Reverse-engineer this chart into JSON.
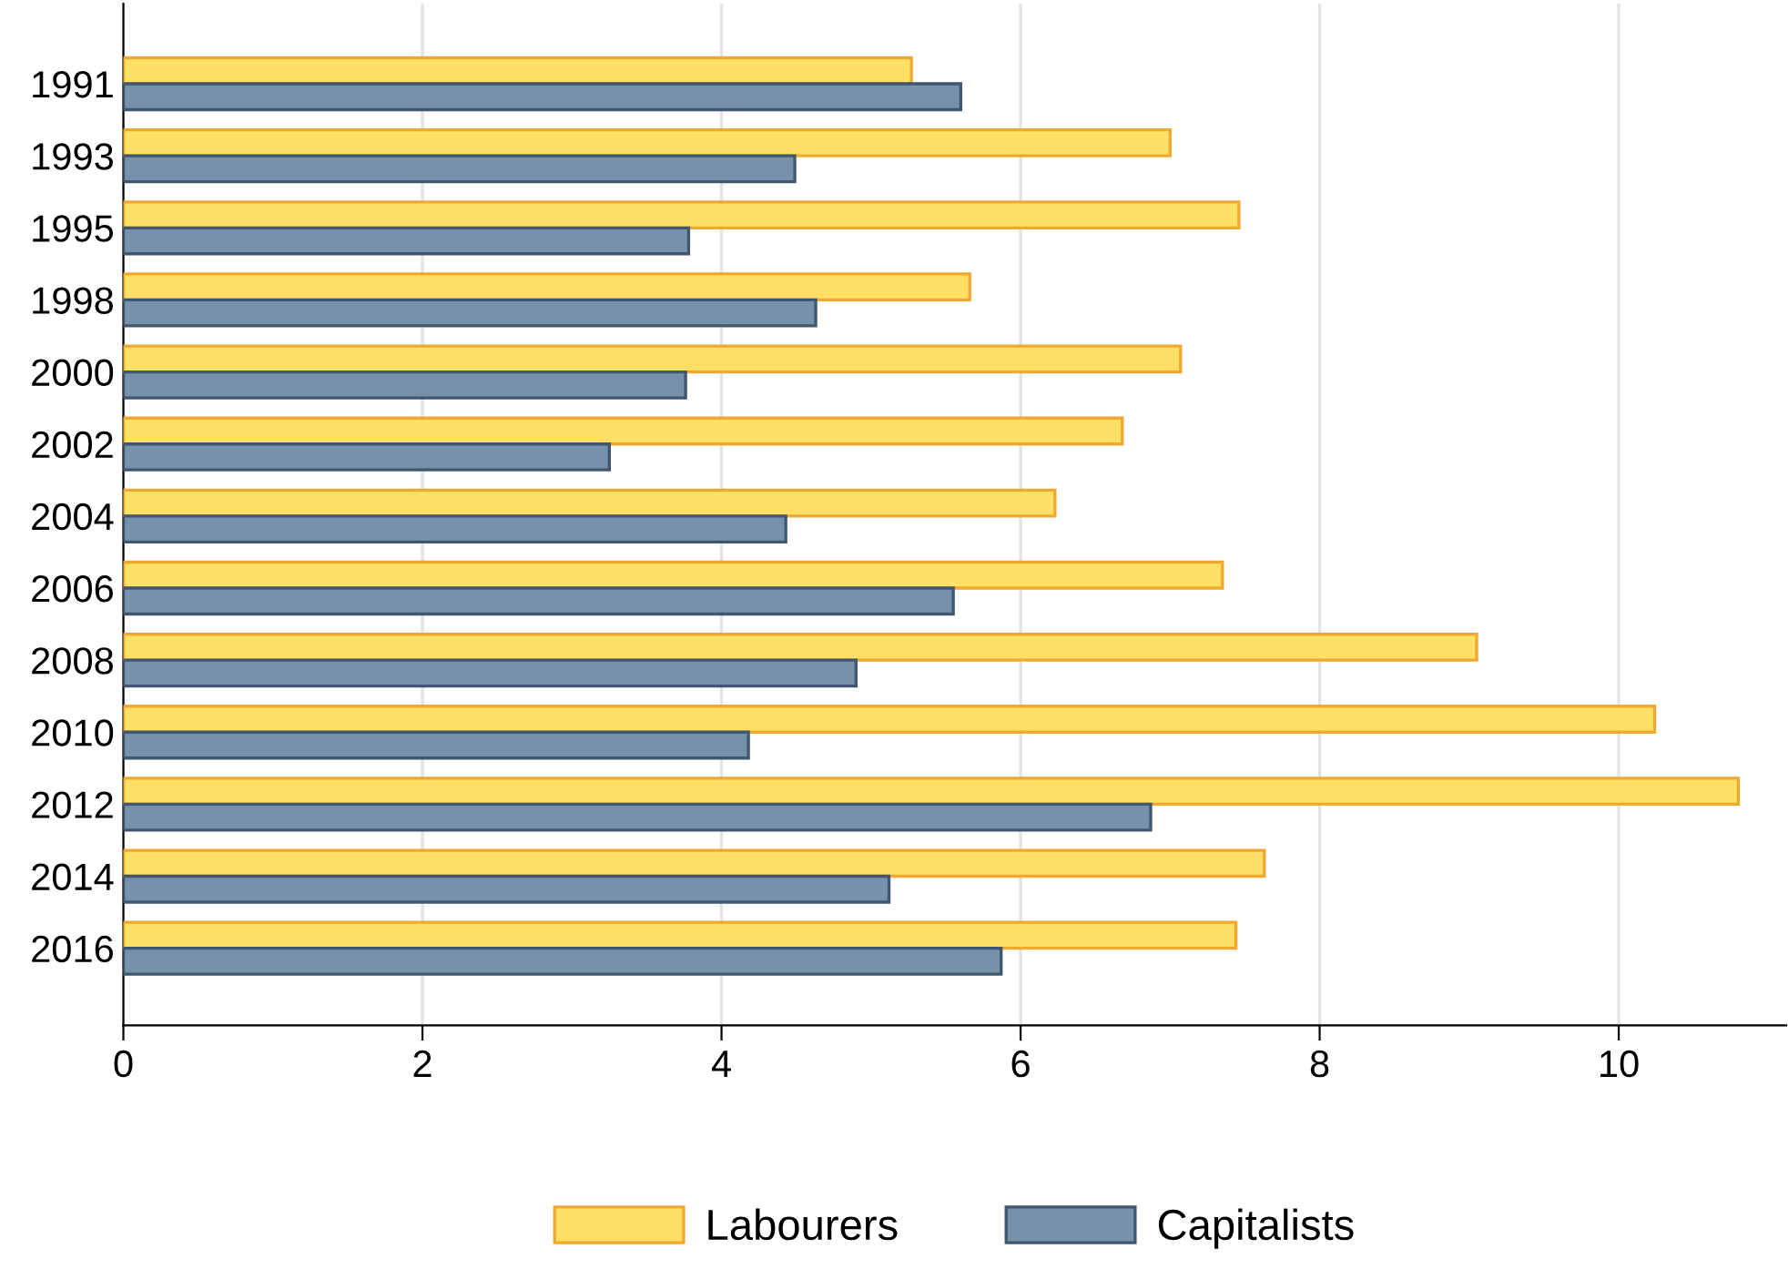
{
  "chart_data": {
    "type": "bar",
    "orientation": "horizontal",
    "categories": [
      "1991",
      "1993",
      "1995",
      "1998",
      "2000",
      "2002",
      "2004",
      "2006",
      "2008",
      "2010",
      "2012",
      "2014",
      "2016"
    ],
    "series": [
      {
        "name": "Labourers",
        "color": "#ffe066",
        "values": [
          5.27,
          7.0,
          7.46,
          5.66,
          7.07,
          6.68,
          6.23,
          7.35,
          9.05,
          10.24,
          10.8,
          7.63,
          7.44
        ]
      },
      {
        "name": "Capitalists",
        "color": "#7692ab",
        "values": [
          5.6,
          4.49,
          3.78,
          4.63,
          3.76,
          3.25,
          4.43,
          5.55,
          4.9,
          4.18,
          6.87,
          5.12,
          5.87
        ]
      }
    ],
    "xlim": [
      0,
      11.12
    ],
    "xticks": [
      0,
      2,
      4,
      6,
      8,
      10
    ],
    "grid": "x",
    "legend": "bottom"
  }
}
